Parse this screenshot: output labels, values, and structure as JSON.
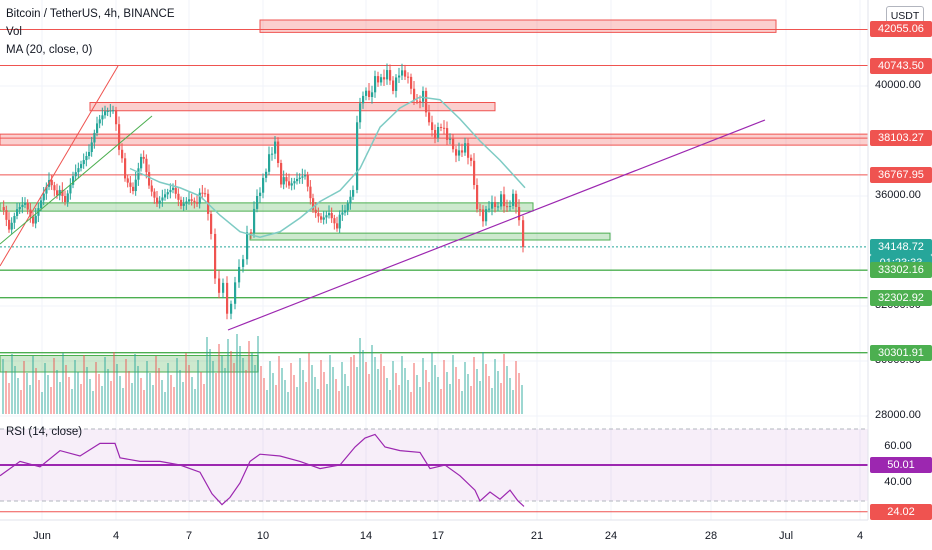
{
  "header": {
    "title": "Bitcoin / TetherUS, 4h, BINANCE",
    "volume_label": "Vol",
    "ma_label": "MA (20, close, 0)",
    "rsi_label": "RSI (14, close)",
    "currency_button": "USDT"
  },
  "price_axis": {
    "ticks": [
      {
        "label": "40000.00",
        "value": 40000
      },
      {
        "label": "36000.00",
        "value": 36000
      },
      {
        "label": "32000.00",
        "value": 32000
      },
      {
        "label": "30000.00",
        "value": 30000
      },
      {
        "label": "28000.00",
        "value": 28000
      }
    ],
    "tags": [
      {
        "label": "42055.06",
        "value": 42055.06,
        "color": "#ef5350"
      },
      {
        "label": "40743.50",
        "value": 40743.5,
        "color": "#ef5350"
      },
      {
        "label": "38103.27",
        "value": 38103.27,
        "color": "#ef5350"
      },
      {
        "label": "36767.95",
        "value": 36767.95,
        "color": "#ef5350"
      },
      {
        "label": "34148.72",
        "value": 34148.72,
        "color": "#26a69a"
      },
      {
        "label": "01:23:33",
        "value": 34148.72,
        "color": "#26a69a",
        "countdown": true
      },
      {
        "label": "33302.16",
        "value": 33302.16,
        "color": "#4caf50"
      },
      {
        "label": "32302.92",
        "value": 32302.92,
        "color": "#4caf50"
      },
      {
        "label": "30301.91",
        "value": 30301.91,
        "color": "#4caf50"
      }
    ]
  },
  "rsi_axis": {
    "ticks": [
      {
        "label": "60.00",
        "value": 60
      },
      {
        "label": "40.00",
        "value": 40
      }
    ],
    "tag": {
      "label": "50.01",
      "value": 50.01,
      "color": "#9c27b0"
    },
    "tag_low": {
      "label": "24.02",
      "value": 24.02,
      "color": "#ef5350"
    }
  },
  "time_axis": {
    "labels": [
      "Jun",
      "4",
      "7",
      "10",
      "14",
      "17",
      "21",
      "24",
      "28",
      "Jul",
      "4"
    ]
  },
  "colors": {
    "up": "#26a69a",
    "down": "#ef5350",
    "ma": "#7ecbc4",
    "trend": "#9c27b0",
    "resistance": "#ef5350",
    "support": "#4caf50",
    "rsi": "#9c27b0"
  },
  "chart_data": {
    "type": "candlestick",
    "symbol": "Bitcoin / TetherUS",
    "interval": "4h",
    "exchange": "BINANCE",
    "ohlc_close_path": [
      [
        0,
        35600
      ],
      [
        8,
        34600
      ],
      [
        16,
        35400
      ],
      [
        24,
        35700
      ],
      [
        32,
        35000
      ],
      [
        40,
        35900
      ],
      [
        48,
        36700
      ],
      [
        56,
        36200
      ],
      [
        64,
        35600
      ],
      [
        72,
        36600
      ],
      [
        80,
        37100
      ],
      [
        88,
        37600
      ],
      [
        96,
        38700
      ],
      [
        104,
        39200
      ],
      [
        112,
        39300
      ],
      [
        118,
        37800
      ],
      [
        124,
        36700
      ],
      [
        132,
        36300
      ],
      [
        140,
        37600
      ],
      [
        148,
        36200
      ],
      [
        156,
        35600
      ],
      [
        164,
        36000
      ],
      [
        172,
        36300
      ],
      [
        180,
        35700
      ],
      [
        188,
        36000
      ],
      [
        196,
        35900
      ],
      [
        204,
        35900
      ],
      [
        210,
        34800
      ],
      [
        214,
        33000
      ],
      [
        218,
        32300
      ],
      [
        222,
        32900
      ],
      [
        226,
        31600
      ],
      [
        230,
        32200
      ],
      [
        234,
        32800
      ],
      [
        238,
        33600
      ],
      [
        242,
        33700
      ],
      [
        246,
        34500
      ],
      [
        250,
        34700
      ],
      [
        256,
        36000
      ],
      [
        262,
        36600
      ],
      [
        268,
        37400
      ],
      [
        274,
        37800
      ],
      [
        280,
        36600
      ],
      [
        288,
        36200
      ],
      [
        296,
        36500
      ],
      [
        304,
        36700
      ],
      [
        312,
        35500
      ],
      [
        320,
        35200
      ],
      [
        328,
        35500
      ],
      [
        336,
        35000
      ],
      [
        344,
        35300
      ],
      [
        352,
        36100
      ],
      [
        356,
        38800
      ],
      [
        362,
        39700
      ],
      [
        368,
        39600
      ],
      [
        374,
        40300
      ],
      [
        380,
        40200
      ],
      [
        386,
        40400
      ],
      [
        392,
        40000
      ],
      [
        398,
        40500
      ],
      [
        404,
        40400
      ],
      [
        410,
        39900
      ],
      [
        416,
        39400
      ],
      [
        422,
        39700
      ],
      [
        428,
        38500
      ],
      [
        434,
        38300
      ],
      [
        440,
        38600
      ],
      [
        446,
        38100
      ],
      [
        452,
        37700
      ],
      [
        458,
        37600
      ],
      [
        464,
        37800
      ],
      [
        470,
        37100
      ],
      [
        476,
        35700
      ],
      [
        482,
        35200
      ],
      [
        488,
        35600
      ],
      [
        494,
        35600
      ],
      [
        500,
        36000
      ],
      [
        506,
        35500
      ],
      [
        512,
        35900
      ],
      [
        518,
        35300
      ],
      [
        522,
        34150
      ]
    ],
    "ma20_path": [
      [
        130,
        37000
      ],
      [
        160,
        36500
      ],
      [
        180,
        36300
      ],
      [
        200,
        36000
      ],
      [
        220,
        35300
      ],
      [
        240,
        34700
      ],
      [
        260,
        34500
      ],
      [
        280,
        34700
      ],
      [
        300,
        35200
      ],
      [
        320,
        35800
      ],
      [
        340,
        36200
      ],
      [
        360,
        37000
      ],
      [
        380,
        38500
      ],
      [
        400,
        39200
      ],
      [
        420,
        39600
      ],
      [
        440,
        39500
      ],
      [
        460,
        38800
      ],
      [
        480,
        38000
      ],
      [
        500,
        37300
      ],
      [
        525,
        36300
      ]
    ],
    "horizontal_levels": [
      42055.06,
      40743.5,
      38103.27,
      36767.95,
      33302.16,
      32302.92,
      30301.91
    ],
    "rsi_path": [
      [
        0,
        44
      ],
      [
        20,
        52
      ],
      [
        40,
        49
      ],
      [
        60,
        58
      ],
      [
        80,
        55
      ],
      [
        100,
        62
      ],
      [
        115,
        62
      ],
      [
        120,
        54
      ],
      [
        140,
        52
      ],
      [
        160,
        52
      ],
      [
        180,
        50
      ],
      [
        200,
        46
      ],
      [
        212,
        34
      ],
      [
        222,
        28
      ],
      [
        230,
        32
      ],
      [
        240,
        40
      ],
      [
        250,
        52
      ],
      [
        260,
        56
      ],
      [
        280,
        55
      ],
      [
        300,
        52
      ],
      [
        320,
        48
      ],
      [
        340,
        50
      ],
      [
        355,
        60
      ],
      [
        365,
        65
      ],
      [
        375,
        67
      ],
      [
        385,
        60
      ],
      [
        400,
        58
      ],
      [
        420,
        57
      ],
      [
        430,
        48
      ],
      [
        445,
        50
      ],
      [
        460,
        44
      ],
      [
        475,
        36
      ],
      [
        480,
        30
      ],
      [
        490,
        35
      ],
      [
        500,
        31
      ],
      [
        510,
        36
      ],
      [
        518,
        30
      ],
      [
        524,
        27
      ]
    ],
    "volume_x_start": 2,
    "volume_x_end": 522
  }
}
